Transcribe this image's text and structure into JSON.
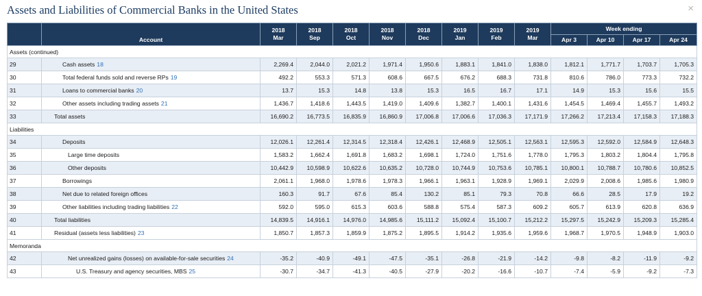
{
  "title": "Assets and Liabilities of Commercial Banks in the United States",
  "close_icon": "×",
  "header": {
    "account": "Account",
    "week_ending": "Week ending",
    "months": [
      {
        "year": "2018",
        "mon": "Mar"
      },
      {
        "year": "2018",
        "mon": "Sep"
      },
      {
        "year": "2018",
        "mon": "Oct"
      },
      {
        "year": "2018",
        "mon": "Nov"
      },
      {
        "year": "2018",
        "mon": "Dec"
      },
      {
        "year": "2019",
        "mon": "Jan"
      },
      {
        "year": "2019",
        "mon": "Feb"
      },
      {
        "year": "2019",
        "mon": "Mar"
      }
    ],
    "weeks": [
      "Apr 3",
      "Apr 10",
      "Apr 17",
      "Apr 24"
    ]
  },
  "sections": {
    "assets": "Assets (continued)",
    "liabilities": "Liabilities",
    "memoranda": "Memoranda"
  },
  "rows": [
    {
      "num": "29",
      "label": "Cash assets",
      "ref": "18",
      "indent": 3,
      "values": [
        "2,269.4",
        "2,044.0",
        "2,021.2",
        "1,971.4",
        "1,950.6",
        "1,883.1",
        "1,841.0",
        "1,838.0",
        "1,812.1",
        "1,771.7",
        "1,703.7",
        "1,705.3"
      ]
    },
    {
      "num": "30",
      "label": "Total federal funds sold and reverse RPs",
      "ref": "19",
      "indent": 3,
      "values": [
        "492.2",
        "553.3",
        "571.3",
        "608.6",
        "667.5",
        "676.2",
        "688.3",
        "731.8",
        "810.6",
        "786.0",
        "773.3",
        "732.2"
      ]
    },
    {
      "num": "31",
      "label": "Loans to commercial banks",
      "ref": "20",
      "indent": 3,
      "values": [
        "13.7",
        "15.3",
        "14.8",
        "13.8",
        "15.3",
        "16.5",
        "16.7",
        "17.1",
        "14.9",
        "15.3",
        "15.6",
        "15.5"
      ]
    },
    {
      "num": "32",
      "label": "Other assets including trading assets",
      "ref": "21",
      "indent": 3,
      "values": [
        "1,436.7",
        "1,418.6",
        "1,443.5",
        "1,419.0",
        "1,409.6",
        "1,382.7",
        "1,400.1",
        "1,431.6",
        "1,454.5",
        "1,469.4",
        "1,455.7",
        "1,493.2"
      ]
    },
    {
      "num": "33",
      "label": "Total assets",
      "ref": "",
      "indent": 1,
      "values": [
        "16,690.2",
        "16,773.5",
        "16,835.9",
        "16,860.9",
        "17,006.8",
        "17,006.6",
        "17,036.3",
        "17,171.9",
        "17,266.2",
        "17,213.4",
        "17,158.3",
        "17,188.3"
      ]
    },
    {
      "num": "34",
      "label": "Deposits",
      "ref": "",
      "indent": 3,
      "values": [
        "12,026.1",
        "12,261.4",
        "12,314.5",
        "12,318.4",
        "12,426.1",
        "12,468.9",
        "12,505.1",
        "12,563.1",
        "12,595.3",
        "12,592.0",
        "12,584.9",
        "12,648.3"
      ]
    },
    {
      "num": "35",
      "label": "Large time deposits",
      "ref": "",
      "indent": 4,
      "values": [
        "1,583.2",
        "1,662.4",
        "1,691.8",
        "1,683.2",
        "1,698.1",
        "1,724.0",
        "1,751.6",
        "1,778.0",
        "1,795.3",
        "1,803.2",
        "1,804.4",
        "1,795.8"
      ]
    },
    {
      "num": "36",
      "label": "Other deposits",
      "ref": "",
      "indent": 4,
      "values": [
        "10,442.9",
        "10,598.9",
        "10,622.6",
        "10,635.2",
        "10,728.0",
        "10,744.9",
        "10,753.6",
        "10,785.1",
        "10,800.1",
        "10,788.7",
        "10,780.6",
        "10,852.5"
      ]
    },
    {
      "num": "37",
      "label": "Borrowings",
      "ref": "",
      "indent": 3,
      "values": [
        "2,061.1",
        "1,968.0",
        "1,978.6",
        "1,978.3",
        "1,966.1",
        "1,963.1",
        "1,928.9",
        "1,969.1",
        "2,029.9",
        "2,008.6",
        "1,985.6",
        "1,980.9"
      ]
    },
    {
      "num": "38",
      "label": "Net due to related foreign offices",
      "ref": "",
      "indent": 3,
      "values": [
        "160.3",
        "91.7",
        "67.6",
        "85.4",
        "130.2",
        "85.1",
        "79.3",
        "70.8",
        "66.6",
        "28.5",
        "17.9",
        "19.2"
      ]
    },
    {
      "num": "39",
      "label": "Other liabilities including trading liabilities",
      "ref": "22",
      "indent": 3,
      "values": [
        "592.0",
        "595.0",
        "615.3",
        "603.6",
        "588.8",
        "575.4",
        "587.3",
        "609.2",
        "605.7",
        "613.9",
        "620.8",
        "636.9"
      ]
    },
    {
      "num": "40",
      "label": "Total liabilities",
      "ref": "",
      "indent": 1,
      "values": [
        "14,839.5",
        "14,916.1",
        "14,976.0",
        "14,985.6",
        "15,111.2",
        "15,092.4",
        "15,100.7",
        "15,212.2",
        "15,297.5",
        "15,242.9",
        "15,209.3",
        "15,285.4"
      ]
    },
    {
      "num": "41",
      "label": "Residual (assets less liabilities)",
      "ref": "23",
      "indent": 1,
      "values": [
        "1,850.7",
        "1,857.3",
        "1,859.9",
        "1,875.2",
        "1,895.5",
        "1,914.2",
        "1,935.6",
        "1,959.6",
        "1,968.7",
        "1,970.5",
        "1,948.9",
        "1,903.0"
      ]
    },
    {
      "num": "42",
      "label": "Net unrealized gains (losses) on available-for-sale securities",
      "ref": "24",
      "indent": 4,
      "values": [
        "-35.2",
        "-40.9",
        "-49.1",
        "-47.5",
        "-35.1",
        "-26.8",
        "-21.9",
        "-14.2",
        "-9.8",
        "-8.2",
        "-11.9",
        "-9.2"
      ]
    },
    {
      "num": "43",
      "label": "U.S. Treasury and agency securities, MBS",
      "ref": "25",
      "indent": 5,
      "values": [
        "-30.7",
        "-34.7",
        "-41.3",
        "-40.5",
        "-27.9",
        "-20.2",
        "-16.6",
        "-10.7",
        "-7.4",
        "-5.9",
        "-9.2",
        "-7.3"
      ]
    }
  ]
}
